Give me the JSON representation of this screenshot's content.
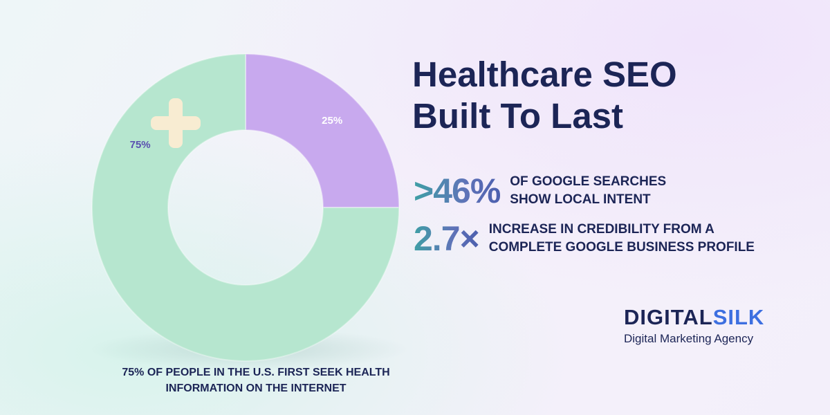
{
  "header": {
    "title": "Healthcare SEO Built To Last"
  },
  "chart_data": {
    "type": "donut",
    "values": [
      25,
      75
    ],
    "value_labels": [
      "25%",
      "75%"
    ],
    "colors": [
      "#c8a9ee",
      "#b6e6cf"
    ],
    "label_colors": [
      "#ffffff",
      "#5a4fb0"
    ],
    "caption": "75% OF PEOPLE IN THE U.S. FIRST SEEK HEALTH INFORMATION ON THE INTERNET"
  },
  "stats": [
    {
      "value": ">46%",
      "text": "OF GOOGLE SEARCHES SHOW LOCAL INTENT"
    },
    {
      "value": "2.7×",
      "text": "INCREASE IN CREDIBILITY FROM A COMPLETE GOOGLE BUSINESS PROFILE"
    }
  ],
  "brand": {
    "logo": [
      "DIGITAL",
      "SILK"
    ],
    "tagline": "Digital Marketing Agency"
  }
}
